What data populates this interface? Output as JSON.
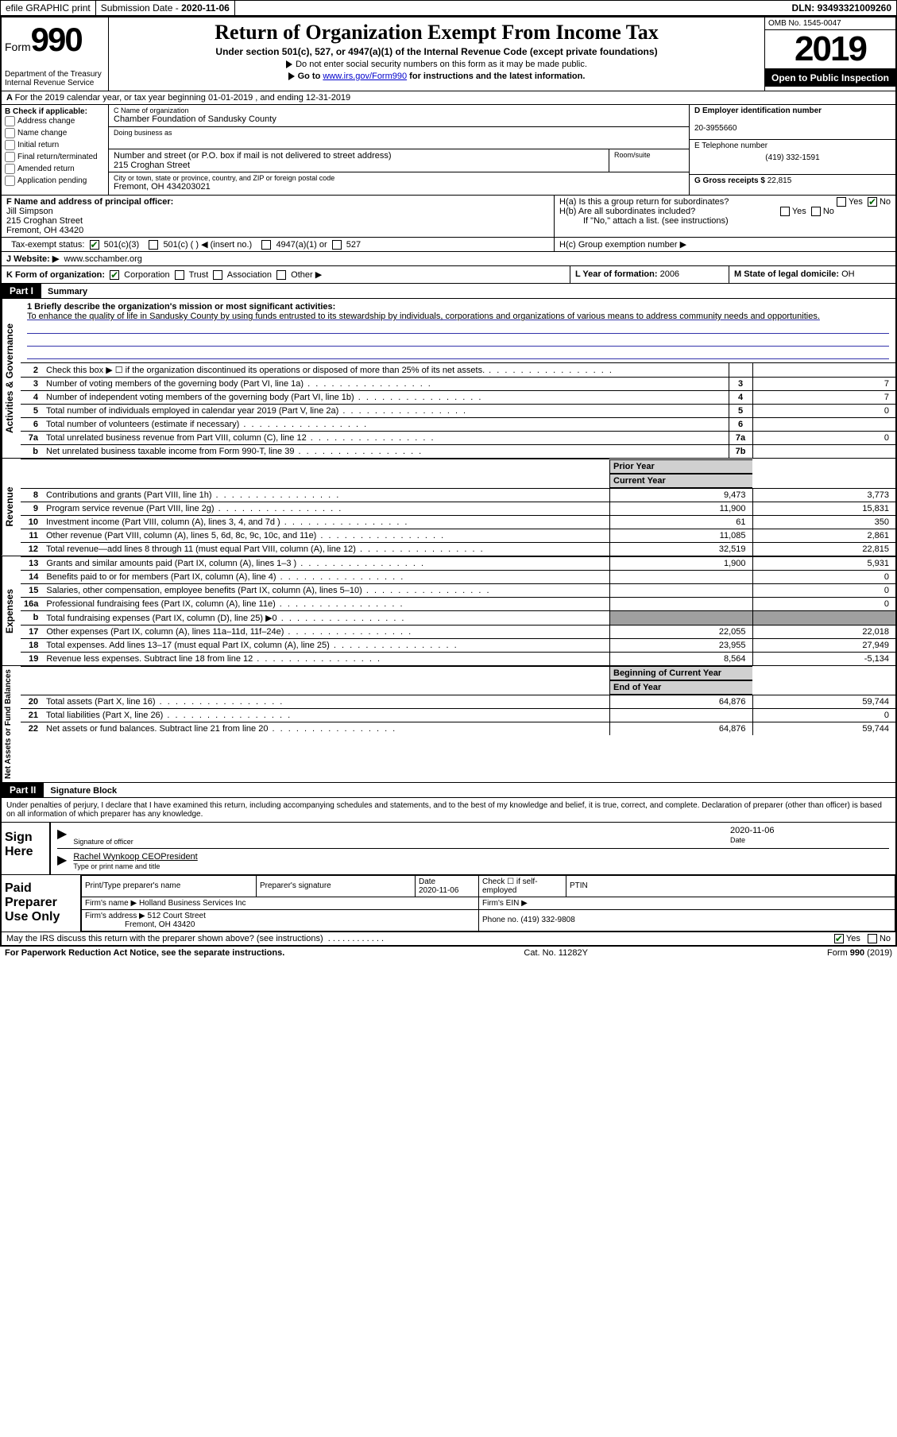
{
  "topbar": {
    "efile": "efile GRAPHIC print",
    "sub_label": "Submission Date",
    "sub_date": "2020-11-06",
    "dln_label": "DLN:",
    "dln": "93493321009260"
  },
  "header": {
    "form_prefix": "Form",
    "form_no": "990",
    "dept": "Department of the Treasury\nInternal Revenue Service",
    "title": "Return of Organization Exempt From Income Tax",
    "subtitle": "Under section 501(c), 527, or 4947(a)(1) of the Internal Revenue Code (except private foundations)",
    "note1": "Do not enter social security numbers on this form as it may be made public.",
    "note2_pre": "Go to ",
    "note2_link": "www.irs.gov/Form990",
    "note2_post": " for instructions and the latest information.",
    "omb": "OMB No. 1545-0047",
    "year": "2019",
    "open": "Open to Public Inspection"
  },
  "lineA": "For the 2019 calendar year, or tax year beginning 01-01-2019   , and ending 12-31-2019",
  "boxB": {
    "title": "B Check if applicable:",
    "items": [
      "Address change",
      "Name change",
      "Initial return",
      "Final return/terminated",
      "Amended return",
      "Application pending"
    ]
  },
  "boxC": {
    "name_lbl": "C Name of organization",
    "name": "Chamber Foundation of Sandusky County",
    "dba_lbl": "Doing business as",
    "addr_lbl": "Number and street (or P.O. box if mail is not delivered to street address)",
    "addr": "215 Croghan Street",
    "room_lbl": "Room/suite",
    "city_lbl": "City or town, state or province, country, and ZIP or foreign postal code",
    "city": "Fremont, OH  434203021"
  },
  "boxD": {
    "lbl": "D Employer identification number",
    "val": "20-3955660"
  },
  "boxE": {
    "lbl": "E Telephone number",
    "val": "(419) 332-1591"
  },
  "boxG": {
    "lbl": "G Gross receipts $",
    "val": "22,815"
  },
  "boxF": {
    "lbl": "F  Name and address of principal officer:",
    "name": "Jill Simpson",
    "addr1": "215 Croghan Street",
    "addr2": "Fremont, OH  43420"
  },
  "boxH": {
    "a": "H(a)  Is this a group return for subordinates?",
    "b": "H(b)  Are all subordinates included?",
    "b_note": "If \"No,\" attach a list. (see instructions)",
    "c": "H(c)  Group exemption number ▶"
  },
  "taxstatus": {
    "lbl": "Tax-exempt status:",
    "opt1": "501(c)(3)",
    "opt2": "501(c) (   ) ◀ (insert no.)",
    "opt3": "4947(a)(1) or",
    "opt4": "527"
  },
  "boxJ": {
    "lbl": "J   Website: ▶",
    "val": "www.scchamber.org"
  },
  "boxK": {
    "lbl": "K Form of organization:",
    "opts": [
      "Corporation",
      "Trust",
      "Association",
      "Other ▶"
    ]
  },
  "boxL": {
    "lbl": "L Year of formation:",
    "val": "2006"
  },
  "boxM": {
    "lbl": "M State of legal domicile:",
    "val": "OH"
  },
  "part1": {
    "hdr": "Part I",
    "title": "Summary"
  },
  "mission": {
    "q": "1  Briefly describe the organization's mission or most significant activities:",
    "text": "To enhance the quality of life in Sandusky County by using funds entrusted to its stewardship by individuals, corporations and organizations of various means to address community needs and opportunities."
  },
  "sections": {
    "gov": "Activities & Governance",
    "rev": "Revenue",
    "exp": "Expenses",
    "net": "Net Assets or Fund Balances"
  },
  "gov_rows": [
    {
      "n": "2",
      "t": "Check this box ▶ ☐  if the organization discontinued its operations or disposed of more than 25% of its net assets.",
      "box": "",
      "v": ""
    },
    {
      "n": "3",
      "t": "Number of voting members of the governing body (Part VI, line 1a)",
      "box": "3",
      "v": "7"
    },
    {
      "n": "4",
      "t": "Number of independent voting members of the governing body (Part VI, line 1b)",
      "box": "4",
      "v": "7"
    },
    {
      "n": "5",
      "t": "Total number of individuals employed in calendar year 2019 (Part V, line 2a)",
      "box": "5",
      "v": "0"
    },
    {
      "n": "6",
      "t": "Total number of volunteers (estimate if necessary)",
      "box": "6",
      "v": ""
    },
    {
      "n": "7a",
      "t": "Total unrelated business revenue from Part VIII, column (C), line 12",
      "box": "7a",
      "v": "0"
    },
    {
      "n": "b",
      "t": "Net unrelated business taxable income from Form 990-T, line 39",
      "box": "7b",
      "v": ""
    }
  ],
  "col_hdr": {
    "prior": "Prior Year",
    "current": "Current Year"
  },
  "rev_rows": [
    {
      "n": "8",
      "t": "Contributions and grants (Part VIII, line 1h)",
      "p": "9,473",
      "c": "3,773"
    },
    {
      "n": "9",
      "t": "Program service revenue (Part VIII, line 2g)",
      "p": "11,900",
      "c": "15,831"
    },
    {
      "n": "10",
      "t": "Investment income (Part VIII, column (A), lines 3, 4, and 7d )",
      "p": "61",
      "c": "350"
    },
    {
      "n": "11",
      "t": "Other revenue (Part VIII, column (A), lines 5, 6d, 8c, 9c, 10c, and 11e)",
      "p": "11,085",
      "c": "2,861"
    },
    {
      "n": "12",
      "t": "Total revenue—add lines 8 through 11 (must equal Part VIII, column (A), line 12)",
      "p": "32,519",
      "c": "22,815"
    }
  ],
  "exp_rows": [
    {
      "n": "13",
      "t": "Grants and similar amounts paid (Part IX, column (A), lines 1–3 )",
      "p": "1,900",
      "c": "5,931"
    },
    {
      "n": "14",
      "t": "Benefits paid to or for members (Part IX, column (A), line 4)",
      "p": "",
      "c": "0"
    },
    {
      "n": "15",
      "t": "Salaries, other compensation, employee benefits (Part IX, column (A), lines 5–10)",
      "p": "",
      "c": "0"
    },
    {
      "n": "16a",
      "t": "Professional fundraising fees (Part IX, column (A), line 11e)",
      "p": "",
      "c": "0"
    },
    {
      "n": "b",
      "t": "Total fundraising expenses (Part IX, column (D), line 25) ▶0",
      "p": "grey",
      "c": "grey"
    },
    {
      "n": "17",
      "t": "Other expenses (Part IX, column (A), lines 11a–11d, 11f–24e)",
      "p": "22,055",
      "c": "22,018"
    },
    {
      "n": "18",
      "t": "Total expenses. Add lines 13–17 (must equal Part IX, column (A), line 25)",
      "p": "23,955",
      "c": "27,949"
    },
    {
      "n": "19",
      "t": "Revenue less expenses. Subtract line 18 from line 12",
      "p": "8,564",
      "c": "-5,134"
    }
  ],
  "net_hdr": {
    "beg": "Beginning of Current Year",
    "end": "End of Year"
  },
  "net_rows": [
    {
      "n": "20",
      "t": "Total assets (Part X, line 16)",
      "p": "64,876",
      "c": "59,744"
    },
    {
      "n": "21",
      "t": "Total liabilities (Part X, line 26)",
      "p": "",
      "c": "0"
    },
    {
      "n": "22",
      "t": "Net assets or fund balances. Subtract line 21 from line 20",
      "p": "64,876",
      "c": "59,744"
    }
  ],
  "part2": {
    "hdr": "Part II",
    "title": "Signature Block"
  },
  "sig": {
    "decl": "Under penalties of perjury, I declare that I have examined this return, including accompanying schedules and statements, and to the best of my knowledge and belief, it is true, correct, and complete. Declaration of preparer (other than officer) is based on all information of which preparer has any knowledge.",
    "here": "Sign Here",
    "off_lbl": "Signature of officer",
    "date_lbl": "Date",
    "date": "2020-11-06",
    "name": "Rachel Wynkoop CEOPresident",
    "name_lbl": "Type or print name and title"
  },
  "prep": {
    "title": "Paid Preparer Use Only",
    "h1": "Print/Type preparer's name",
    "h2": "Preparer's signature",
    "h3": "Date",
    "h3v": "2020-11-06",
    "h4": "Check ☐ if self-employed",
    "h5": "PTIN",
    "firm_lbl": "Firm's name  ▶",
    "firm": "Holland Business Services Inc",
    "ein_lbl": "Firm's EIN ▶",
    "addr_lbl": "Firm's address ▶",
    "addr1": "512 Court Street",
    "addr2": "Fremont, OH  43420",
    "phone_lbl": "Phone no.",
    "phone": "(419) 332-9808"
  },
  "discuss": "May the IRS discuss this return with the preparer shown above? (see instructions)",
  "foot": {
    "l": "For Paperwork Reduction Act Notice, see the separate instructions.",
    "m": "Cat. No. 11282Y",
    "r": "Form 990 (2019)"
  }
}
